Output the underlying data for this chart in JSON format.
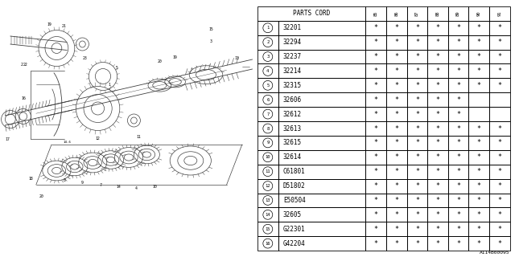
{
  "watermark": "A114B00095",
  "table_header": "PARTS CORD",
  "col_headers": [
    "85",
    "86",
    "87",
    "88",
    "89",
    "90",
    "91"
  ],
  "rows": [
    {
      "num": 1,
      "part": "32201",
      "marks": [
        1,
        1,
        1,
        1,
        1,
        1,
        1
      ]
    },
    {
      "num": 2,
      "part": "32294",
      "marks": [
        1,
        1,
        1,
        1,
        1,
        1,
        1
      ]
    },
    {
      "num": 3,
      "part": "32237",
      "marks": [
        1,
        1,
        1,
        1,
        1,
        1,
        1
      ]
    },
    {
      "num": 4,
      "part": "32214",
      "marks": [
        1,
        1,
        1,
        1,
        1,
        1,
        1
      ]
    },
    {
      "num": 5,
      "part": "32315",
      "marks": [
        1,
        1,
        1,
        1,
        1,
        1,
        1
      ]
    },
    {
      "num": 6,
      "part": "32606",
      "marks": [
        1,
        1,
        1,
        1,
        1,
        0,
        0
      ]
    },
    {
      "num": 7,
      "part": "32612",
      "marks": [
        1,
        1,
        1,
        1,
        1,
        0,
        0
      ]
    },
    {
      "num": 8,
      "part": "32613",
      "marks": [
        1,
        1,
        1,
        1,
        1,
        1,
        1
      ]
    },
    {
      "num": 9,
      "part": "32615",
      "marks": [
        1,
        1,
        1,
        1,
        1,
        1,
        1
      ]
    },
    {
      "num": 10,
      "part": "32614",
      "marks": [
        1,
        1,
        1,
        1,
        1,
        1,
        1
      ]
    },
    {
      "num": 11,
      "part": "C61801",
      "marks": [
        1,
        1,
        1,
        1,
        1,
        1,
        1
      ]
    },
    {
      "num": 12,
      "part": "D51802",
      "marks": [
        1,
        1,
        1,
        1,
        1,
        1,
        1
      ]
    },
    {
      "num": 13,
      "part": "E50504",
      "marks": [
        1,
        1,
        1,
        1,
        1,
        1,
        1
      ]
    },
    {
      "num": 14,
      "part": "32605",
      "marks": [
        1,
        1,
        1,
        1,
        1,
        1,
        1
      ]
    },
    {
      "num": 15,
      "part": "G22301",
      "marks": [
        1,
        1,
        1,
        1,
        1,
        1,
        1
      ]
    },
    {
      "num": 16,
      "part": "G42204",
      "marks": [
        1,
        1,
        1,
        1,
        1,
        1,
        1
      ]
    }
  ],
  "bg_color": "#ffffff",
  "line_color": "#404040",
  "text_color": "#000000"
}
